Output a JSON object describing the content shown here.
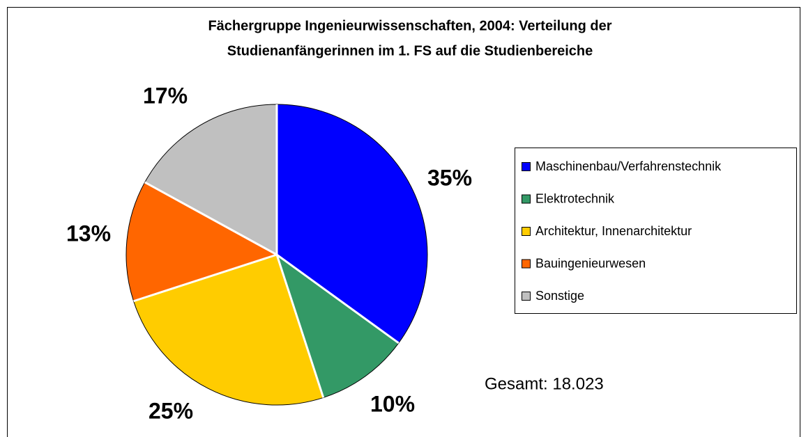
{
  "chart_data": {
    "type": "pie",
    "title": [
      "Fächergruppe Ingenieurwissenschaften, 2004: Verteilung der",
      "Studienanfängerinnen im 1. FS auf die Studienbereiche"
    ],
    "categories": [
      "Maschinenbau/Verfahrenstechnik",
      "Elektrotechnik",
      "Architektur, Innenarchitektur",
      "Bauingenieurwesen",
      "Sonstige"
    ],
    "values": [
      35,
      10,
      25,
      13,
      17
    ],
    "value_labels": [
      "35%",
      "10%",
      "25%",
      "13%",
      "17%"
    ],
    "colors": [
      "#0000ff",
      "#339966",
      "#ffcc00",
      "#ff6600",
      "#c0c0c0"
    ],
    "annotation": "Gesamt: 18.023",
    "legend": "right"
  }
}
